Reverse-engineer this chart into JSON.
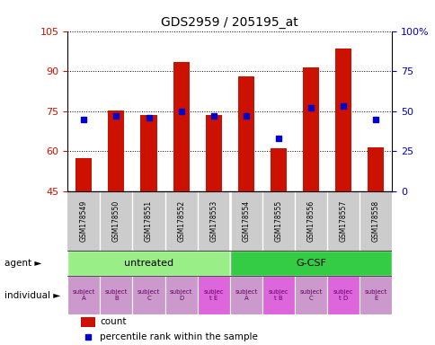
{
  "title": "GDS2959 / 205195_at",
  "samples": [
    "GSM178549",
    "GSM178550",
    "GSM178551",
    "GSM178552",
    "GSM178553",
    "GSM178554",
    "GSM178555",
    "GSM178556",
    "GSM178557",
    "GSM178558"
  ],
  "counts": [
    57.5,
    75.2,
    73.5,
    93.5,
    73.5,
    88.0,
    61.0,
    91.5,
    98.5,
    61.5
  ],
  "percentile_ranks": [
    45,
    47,
    46,
    50,
    47,
    47,
    33,
    52,
    53,
    45
  ],
  "ylim": [
    45,
    105
  ],
  "yticks_left": [
    45,
    60,
    75,
    90,
    105
  ],
  "yticks_right": [
    0,
    25,
    50,
    75,
    100
  ],
  "ytick_right_labels": [
    "0",
    "25",
    "50",
    "75",
    "100%"
  ],
  "bar_color": "#cc1100",
  "dot_color": "#0000cc",
  "agent_groups": [
    {
      "label": "untreated",
      "start": 0,
      "end": 5,
      "color": "#99ee88"
    },
    {
      "label": "G-CSF",
      "start": 5,
      "end": 10,
      "color": "#33cc44"
    }
  ],
  "individual_labels": [
    "subject\nA",
    "subject\nB",
    "subject\nC",
    "subject\nD",
    "subjec\nt E",
    "subject\nA",
    "subjec\nt B",
    "subject\nC",
    "subjec\nt D",
    "subject\nE"
  ],
  "individual_highlight": [
    4,
    6,
    8
  ],
  "individual_highlight_color": "#dd66dd",
  "individual_normal_color": "#cc99cc",
  "bar_width": 0.5,
  "left_axis_color": "#cc1100",
  "right_axis_color": "#0000cc",
  "gsm_bg_color": "#cccccc",
  "gsm_separator_color": "#ffffff"
}
